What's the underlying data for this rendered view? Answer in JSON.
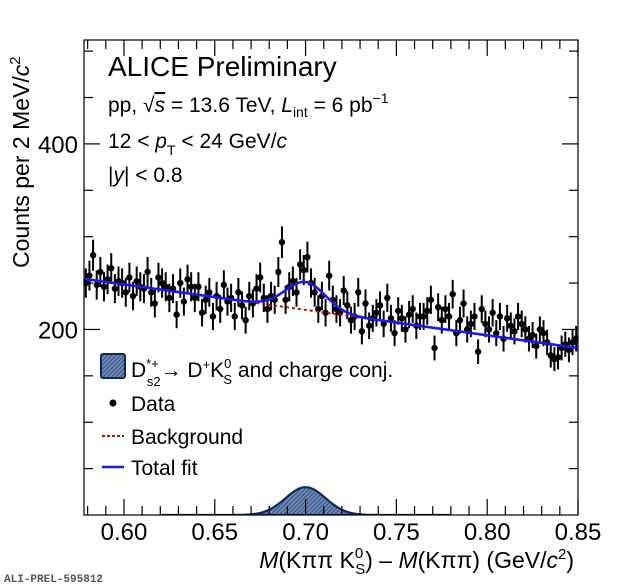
{
  "chart_data": {
    "type": "scatter",
    "title": "ALICE Preliminary",
    "annotations": [
      "pp,  √s = 13.6 TeV,  L_int = 6 pb^-1",
      "12 < p_T < 24 GeV/c",
      "|y| < 0.8"
    ],
    "xlabel": "M(KππK⁰_S) – M(Kππ) (GeV/c²)",
    "ylabel": "Counts per 2 MeV/c²",
    "xlim": [
      0.578,
      0.85
    ],
    "ylim": [
      0,
      512
    ],
    "xticks": [
      0.6,
      0.65,
      0.7,
      0.75,
      0.8,
      0.85
    ],
    "xtick_labels": [
      "0.60",
      "0.65",
      "0.70",
      "0.75",
      "0.80",
      "0.85"
    ],
    "yticks": [
      200,
      400
    ],
    "ytick_labels": [
      "200",
      "400"
    ],
    "grid": false,
    "legend_position": "bottom-left",
    "legend": [
      "D*+_s2 → D+K0_S and charge conj.",
      "Data",
      "Background",
      "Total fit"
    ],
    "fit": {
      "background": {
        "description": "linear",
        "y_at_0.58": 254,
        "y_at_0.85": 180
      },
      "signal": {
        "description": "gaussian",
        "mean": 0.7,
        "sigma": 0.011,
        "amplitude": 30,
        "range": [
          0.62,
          0.78
        ]
      }
    },
    "series": [
      {
        "name": "Data",
        "x": [
          0.579,
          0.581,
          0.583,
          0.585,
          0.587,
          0.589,
          0.591,
          0.593,
          0.595,
          0.597,
          0.599,
          0.601,
          0.603,
          0.605,
          0.607,
          0.609,
          0.611,
          0.613,
          0.615,
          0.617,
          0.619,
          0.621,
          0.623,
          0.625,
          0.627,
          0.629,
          0.631,
          0.633,
          0.635,
          0.637,
          0.639,
          0.641,
          0.643,
          0.645,
          0.647,
          0.649,
          0.651,
          0.653,
          0.655,
          0.657,
          0.659,
          0.661,
          0.663,
          0.665,
          0.667,
          0.669,
          0.671,
          0.673,
          0.675,
          0.677,
          0.679,
          0.681,
          0.683,
          0.685,
          0.687,
          0.689,
          0.691,
          0.693,
          0.695,
          0.697,
          0.699,
          0.701,
          0.703,
          0.705,
          0.707,
          0.709,
          0.711,
          0.713,
          0.715,
          0.717,
          0.719,
          0.721,
          0.723,
          0.725,
          0.727,
          0.729,
          0.731,
          0.733,
          0.735,
          0.737,
          0.739,
          0.741,
          0.743,
          0.745,
          0.747,
          0.749,
          0.751,
          0.753,
          0.755,
          0.757,
          0.759,
          0.761,
          0.763,
          0.765,
          0.767,
          0.769,
          0.771,
          0.773,
          0.775,
          0.777,
          0.779,
          0.781,
          0.783,
          0.785,
          0.787,
          0.789,
          0.791,
          0.793,
          0.795,
          0.797,
          0.799,
          0.801,
          0.803,
          0.805,
          0.807,
          0.809,
          0.811,
          0.813,
          0.815,
          0.817,
          0.819,
          0.821,
          0.823,
          0.825,
          0.827,
          0.829,
          0.831,
          0.833,
          0.835,
          0.837,
          0.839,
          0.841,
          0.843,
          0.845,
          0.847,
          0.849
        ],
        "y": [
          250,
          258,
          280,
          248,
          262,
          246,
          254,
          266,
          244,
          252,
          250,
          240,
          256,
          236,
          252,
          246,
          244,
          262,
          240,
          228,
          256,
          250,
          246,
          234,
          244,
          216,
          250,
          230,
          254,
          246,
          234,
          246,
          218,
          232,
          240,
          214,
          236,
          222,
          248,
          230,
          234,
          214,
          240,
          226,
          210,
          236,
          228,
          244,
          256,
          234,
          222,
          236,
          232,
          262,
          294,
          232,
          246,
          252,
          240,
          270,
          264,
          278,
          250,
          240,
          222,
          236,
          218,
          258,
          232,
          222,
          218,
          242,
          226,
          210,
          214,
          240,
          198,
          228,
          204,
          212,
          218,
          226,
          206,
          234,
          212,
          196,
          220,
          212,
          200,
          216,
          222,
          204,
          214,
          214,
          220,
          232,
          180,
          224,
          210,
          222,
          214,
          238,
          196,
          210,
          228,
          200,
          206,
          214,
          176,
          222,
          206,
          200,
          218,
          196,
          214,
          190,
          212,
          204,
          198,
          214,
          206,
          200,
          190,
          194,
          182,
          200,
          196,
          186,
          172,
          168,
          170,
          180,
          184,
          178,
          186,
          190
        ]
      }
    ]
  },
  "footer_label": "ALI-PREL-595812"
}
